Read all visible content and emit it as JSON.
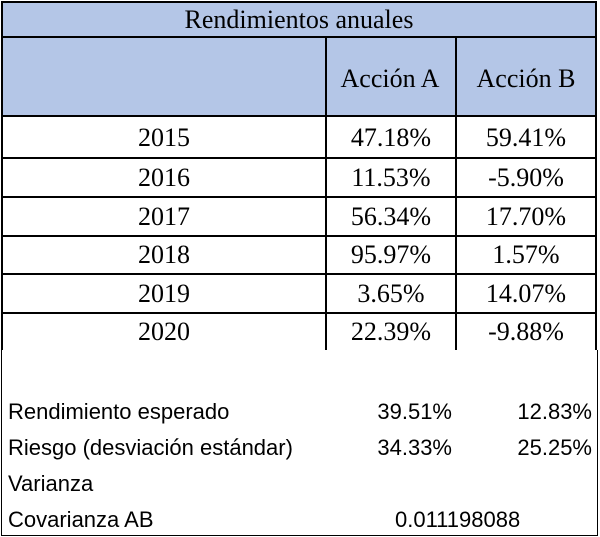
{
  "table": {
    "title": "Rendimientos anuales",
    "headers": [
      "",
      "Acción A",
      "Acción B"
    ],
    "rows": [
      {
        "year": "2015",
        "a": "47.18%",
        "b": "59.41%"
      },
      {
        "year": "2016",
        "a": "11.53%",
        "b": "-5.90%"
      },
      {
        "year": "2017",
        "a": "56.34%",
        "b": "17.70%"
      },
      {
        "year": "2018",
        "a": "95.97%",
        "b": "1.57%"
      },
      {
        "year": "2019",
        "a": "3.65%",
        "b": "14.07%"
      },
      {
        "year": "2020",
        "a": "22.39%",
        "b": "-9.88%"
      }
    ]
  },
  "summary": {
    "expected_label": "Rendimiento esperado",
    "expected_a": "39.51%",
    "expected_b": "12.83%",
    "risk_label": "Riesgo (desviación estándar)",
    "risk_a": "34.33%",
    "risk_b": "25.25%",
    "variance_label": "Varianza",
    "covariance_label": "Covarianza AB",
    "covariance_value": "0.011198088"
  },
  "colors": {
    "header_fill": "#b4c6e7",
    "border": "#000000"
  }
}
